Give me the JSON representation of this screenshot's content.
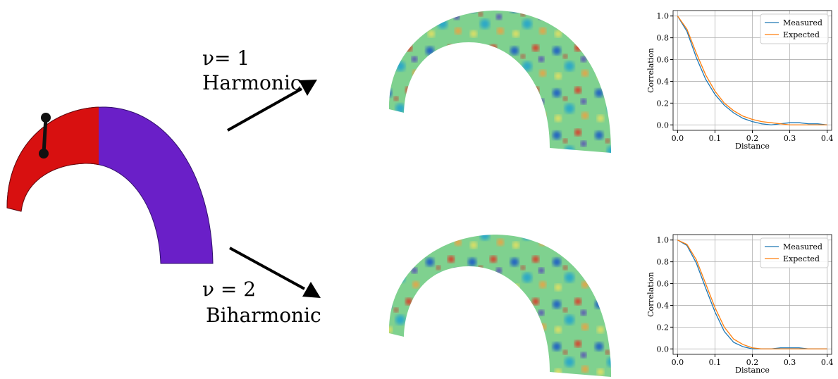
{
  "labels": {
    "top_nu": "ν= 1",
    "top_name": "Harmonic",
    "bottom_nu": "ν = 2",
    "bottom_name": "Biharmonic"
  },
  "chart_data": [
    {
      "type": "line",
      "x_label": "Distance",
      "y_label": "Correlation",
      "x": [
        0,
        0.025,
        0.05,
        0.075,
        0.1,
        0.125,
        0.15,
        0.175,
        0.2,
        0.225,
        0.25,
        0.275,
        0.3,
        0.325,
        0.35,
        0.375,
        0.4
      ],
      "series": [
        {
          "name": "Measured",
          "color": "#1f77b4",
          "values": [
            1,
            0.86,
            0.62,
            0.42,
            0.28,
            0.18,
            0.11,
            0.06,
            0.03,
            0.01,
            0.0,
            0.01,
            0.02,
            0.02,
            0.01,
            0.01,
            0.0
          ]
        },
        {
          "name": "Expected",
          "color": "#ff7f0e",
          "values": [
            1,
            0.88,
            0.66,
            0.46,
            0.31,
            0.2,
            0.13,
            0.08,
            0.05,
            0.03,
            0.02,
            0.01,
            0.0,
            0.0,
            0.0,
            0.0,
            0.0
          ]
        }
      ],
      "xlim": [
        -0.012,
        0.412
      ],
      "ylim": [
        -0.05,
        1.05
      ],
      "xticks": [
        {
          "value": 0,
          "label": "0.0"
        },
        {
          "value": 0.1,
          "label": "0.1"
        },
        {
          "value": 0.2,
          "label": "0.2"
        },
        {
          "value": 0.3,
          "label": "0.3"
        },
        {
          "value": 0.4,
          "label": "0.4"
        }
      ],
      "yticks": [
        {
          "value": 0,
          "label": "0.0"
        },
        {
          "value": 0.2,
          "label": "0.2"
        },
        {
          "value": 0.4,
          "label": "0.4"
        },
        {
          "value": 0.6,
          "label": "0.6"
        },
        {
          "value": 0.8,
          "label": "0.8"
        },
        {
          "value": 1,
          "label": "1.0"
        }
      ],
      "grid": true,
      "legend": "upper right"
    },
    {
      "type": "line",
      "x_label": "Distance",
      "y_label": "Correlation",
      "x": [
        0,
        0.025,
        0.05,
        0.075,
        0.1,
        0.125,
        0.15,
        0.175,
        0.2,
        0.225,
        0.25,
        0.275,
        0.3,
        0.325,
        0.35,
        0.375,
        0.4
      ],
      "series": [
        {
          "name": "Measured",
          "color": "#1f77b4",
          "values": [
            1,
            0.95,
            0.79,
            0.56,
            0.34,
            0.16,
            0.06,
            0.02,
            0.0,
            0.0,
            0.0,
            0.01,
            0.01,
            0.01,
            0.0,
            0.0,
            0.0
          ]
        },
        {
          "name": "Expected",
          "color": "#ff7f0e",
          "values": [
            1,
            0.96,
            0.82,
            0.6,
            0.38,
            0.2,
            0.09,
            0.04,
            0.01,
            0.0,
            0.0,
            0.0,
            0.0,
            0.0,
            0.0,
            0.0,
            0.0
          ]
        }
      ],
      "xlim": [
        -0.012,
        0.412
      ],
      "ylim": [
        -0.05,
        1.05
      ],
      "xticks": [
        {
          "value": 0,
          "label": "0.0"
        },
        {
          "value": 0.1,
          "label": "0.1"
        },
        {
          "value": 0.2,
          "label": "0.2"
        },
        {
          "value": 0.3,
          "label": "0.3"
        },
        {
          "value": 0.4,
          "label": "0.4"
        }
      ],
      "yticks": [
        {
          "value": 0,
          "label": "0.0"
        },
        {
          "value": 0.2,
          "label": "0.2"
        },
        {
          "value": 0.4,
          "label": "0.4"
        },
        {
          "value": 0.6,
          "label": "0.6"
        },
        {
          "value": 0.8,
          "label": "0.8"
        },
        {
          "value": 1,
          "label": "1.0"
        }
      ],
      "grid": true,
      "legend": "upper right"
    }
  ]
}
